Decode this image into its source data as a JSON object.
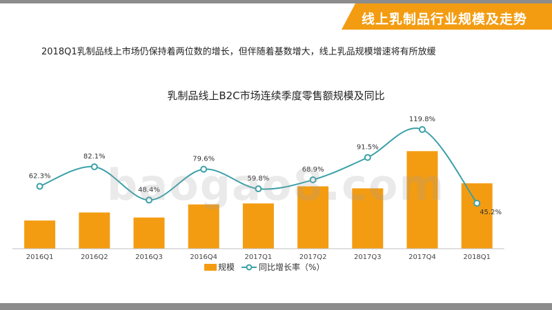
{
  "header": {
    "title": "线上乳制品行业规模及走势",
    "subtitle": "2018Q1乳制品线上市场仍保持着两位数的增长，但伴随着基数增大，线上乳品规模增速将有所放缓"
  },
  "watermark": "baogao8.com",
  "colors": {
    "bar": "#f39c12",
    "line": "#3aa0a8",
    "accent": "#f39c12",
    "bar_frame": "#8c8c8c"
  },
  "chart_data": {
    "type": "bar",
    "title": "乳制品线上B2C市场连续季度零售额规模及同比",
    "categories": [
      "2016Q1",
      "2016Q2",
      "2016Q3",
      "2016Q4",
      "2017Q1",
      "2017Q2",
      "2017Q3",
      "2017Q4",
      "2018Q1"
    ],
    "series": [
      {
        "name": "规模",
        "type": "bar",
        "values": [
          28,
          36,
          31,
          44,
          45,
          62,
          60,
          97,
          65
        ]
      },
      {
        "name": "同比增长率（%）",
        "type": "line",
        "values": [
          62.3,
          82.1,
          48.4,
          79.6,
          59.8,
          68.9,
          91.5,
          119.8,
          45.2
        ],
        "labels": [
          "62.3%",
          "82.1%",
          "48.4%",
          "79.6%",
          "59.8%",
          "68.9%",
          "91.5%",
          "119.8%",
          "45.2%"
        ]
      }
    ],
    "legend": {
      "position": "bottom"
    },
    "grid": false
  }
}
